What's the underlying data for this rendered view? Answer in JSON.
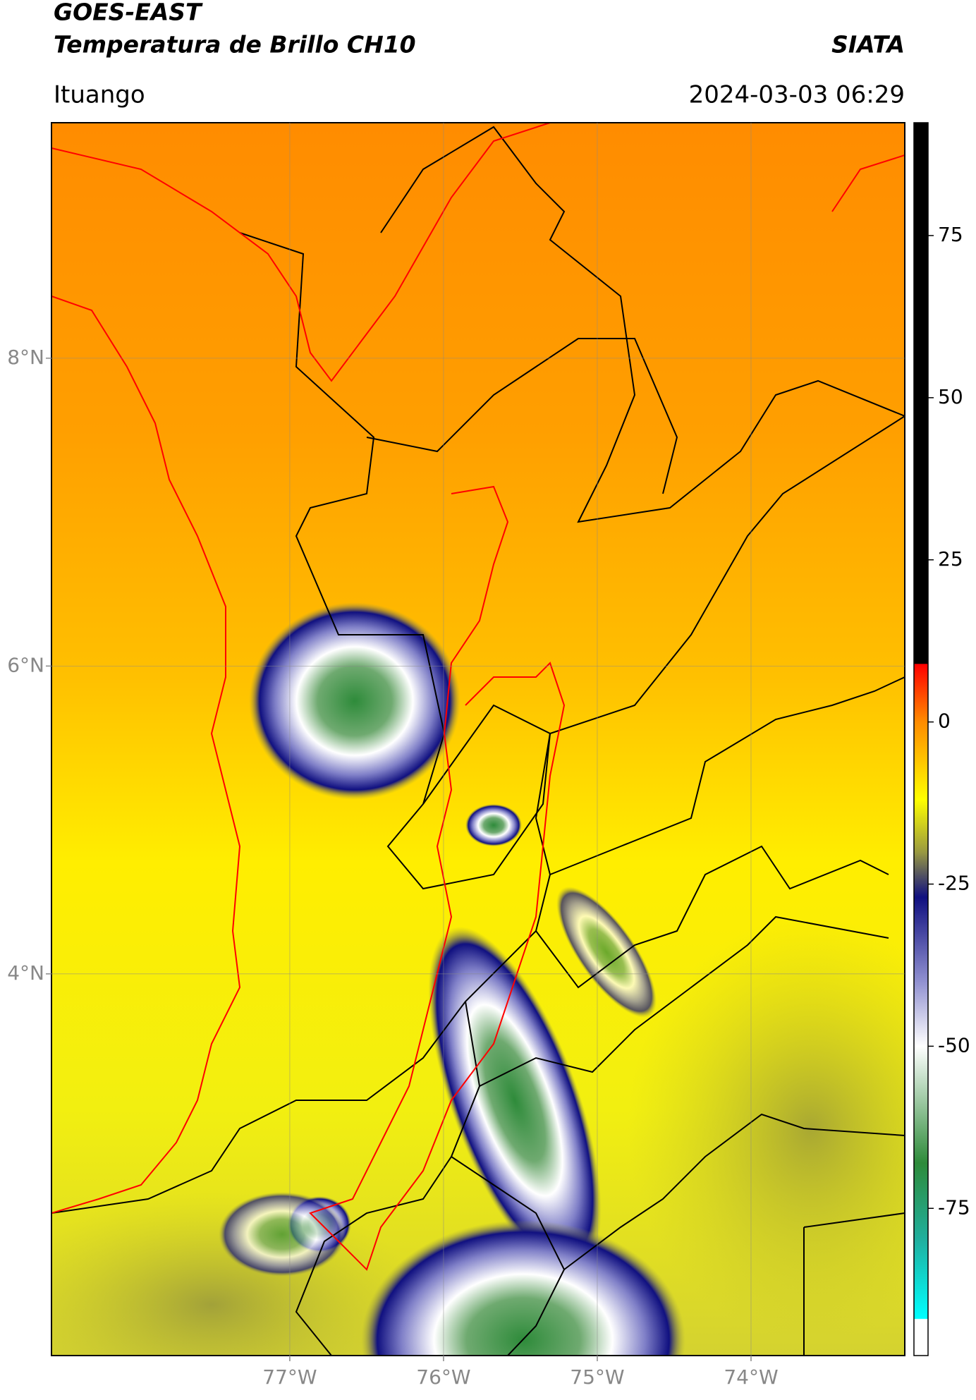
{
  "map": {
    "title_top": "GOES-EAST",
    "title": "Temperatura de Brillo CH10",
    "source": "SIATA",
    "region": "Ituango",
    "datetime": "2024-03-03 06:29",
    "xlim": [
      -78.55,
      -73.0
    ],
    "ylim": [
      1.52,
      9.53
    ],
    "xticks": [
      {
        "value": -77,
        "label": "77°W"
      },
      {
        "value": -76,
        "label": "76°W"
      },
      {
        "value": -75,
        "label": "75°W"
      },
      {
        "value": -74,
        "label": "74°W"
      }
    ],
    "yticks": [
      {
        "value": 8,
        "label": "8°N"
      },
      {
        "value": 6,
        "label": "6°N"
      },
      {
        "value": 4,
        "label": "4°N"
      }
    ],
    "grid": true,
    "colorbar": {
      "lim": [
        -97.7,
        92.4
      ],
      "ticks": [
        75,
        50,
        25,
        0,
        -25,
        -50,
        -75
      ],
      "colormap": [
        {
          "value": 92.4,
          "color": "#000000"
        },
        {
          "value": 9,
          "color": "#000000"
        },
        {
          "value": 8.9,
          "color": "#ff0000"
        },
        {
          "value": 0,
          "color": "#ff8c00"
        },
        {
          "value": -12,
          "color": "#ffff00"
        },
        {
          "value": -20,
          "color": "#9a9a40"
        },
        {
          "value": -27,
          "color": "#101080"
        },
        {
          "value": -40,
          "color": "#9090d0"
        },
        {
          "value": -50,
          "color": "#ffffff"
        },
        {
          "value": -68,
          "color": "#2e8b3a"
        },
        {
          "value": -80,
          "color": "#20b0a0"
        },
        {
          "value": -92,
          "color": "#00ffff"
        },
        {
          "value": -92.1,
          "color": "#ffffff"
        },
        {
          "value": -97.7,
          "color": "#ffffff"
        }
      ]
    }
  }
}
